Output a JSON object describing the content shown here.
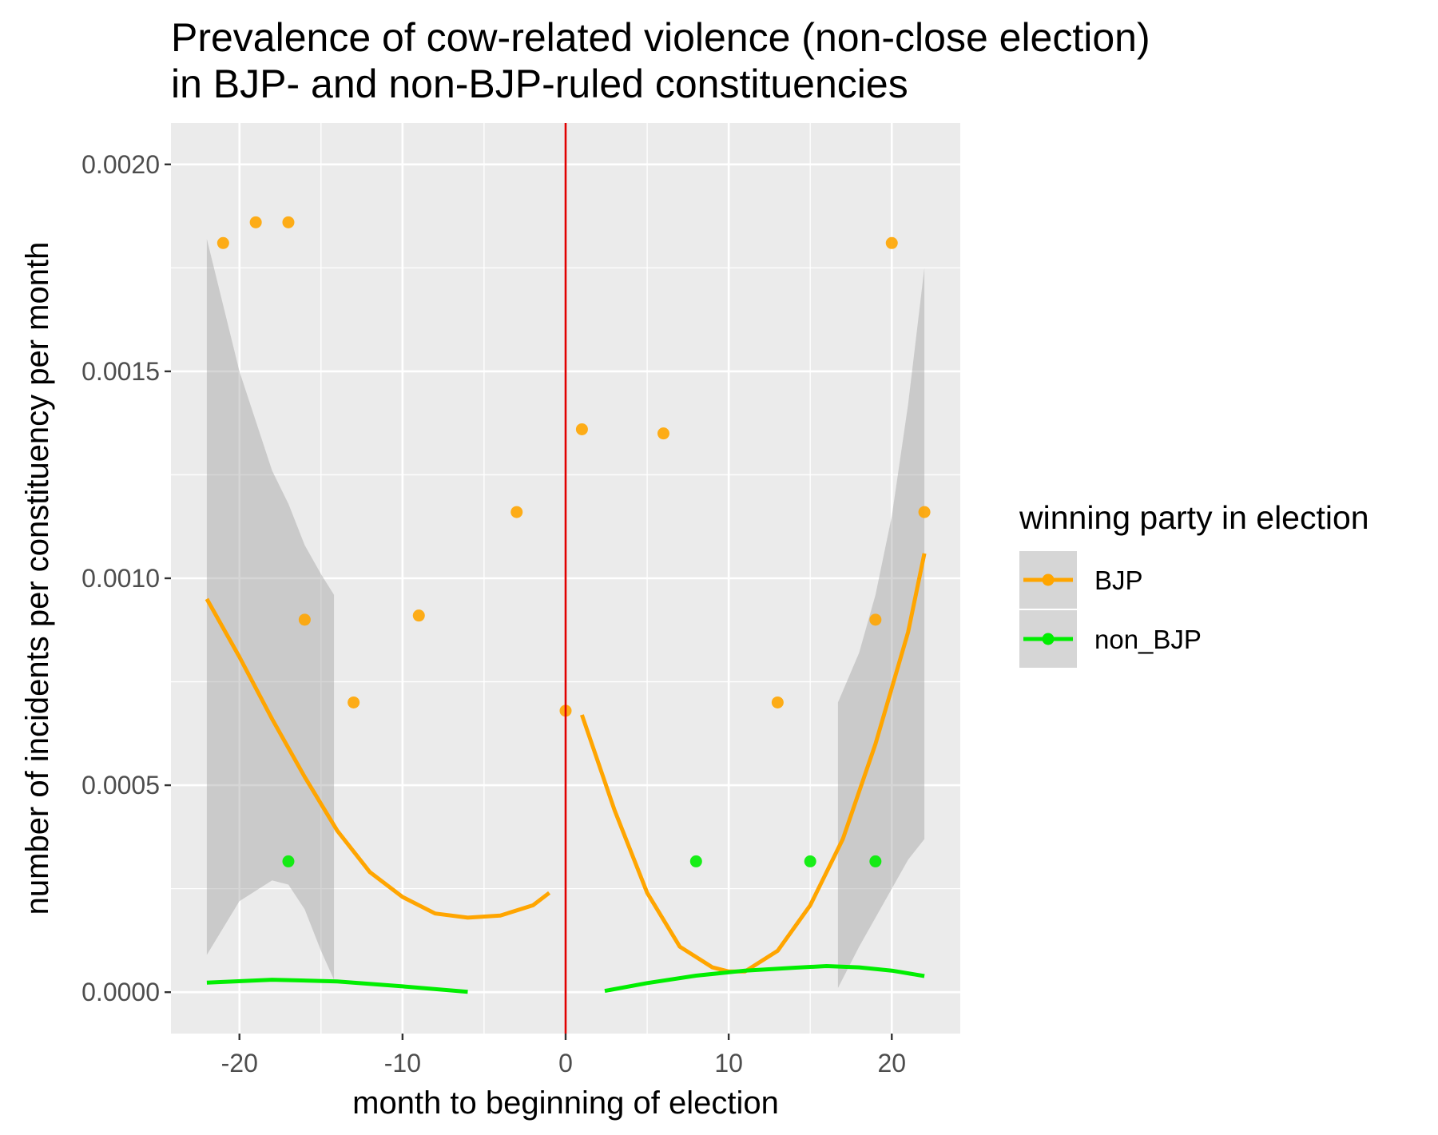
{
  "chart_data": {
    "type": "scatter",
    "title": [
      "Prevalence of cow-related violence (non-close election)",
      "in BJP- and non-BJP-ruled constituencies"
    ],
    "xlabel": "month to beginning of election",
    "ylabel": "number of incidents per constituency per month",
    "xlim": [
      -24.2,
      24.2
    ],
    "ylim": [
      -0.0001,
      0.0021
    ],
    "x_ticks": [
      -20,
      -10,
      0,
      10,
      20
    ],
    "x_tick_labels": [
      "-20",
      "-10",
      "0",
      "10",
      "20"
    ],
    "y_ticks": [
      0.0,
      0.0005,
      0.001,
      0.0015,
      0.002
    ],
    "y_tick_labels": [
      "0.0000",
      "0.0005",
      "0.0010",
      "0.0015",
      "0.0020"
    ],
    "grid": true,
    "vline": {
      "x": 0,
      "color": "#e00000"
    },
    "legend": {
      "title": "winning party in election",
      "position": "right",
      "entries": [
        {
          "label": "BJP",
          "color": "#ffa500"
        },
        {
          "label": "non_BJP",
          "color": "#00ee00"
        }
      ]
    },
    "series": [
      {
        "name": "BJP",
        "color": "#ffa500",
        "points": [
          {
            "x": -21,
            "y": 0.00181
          },
          {
            "x": -19,
            "y": 0.00186
          },
          {
            "x": -17,
            "y": 0.00186
          },
          {
            "x": -16,
            "y": 0.0009
          },
          {
            "x": -13,
            "y": 0.0007
          },
          {
            "x": -9,
            "y": 0.00091
          },
          {
            "x": -3,
            "y": 0.00116
          },
          {
            "x": 0,
            "y": 0.00068
          },
          {
            "x": 1,
            "y": 0.00136
          },
          {
            "x": 6,
            "y": 0.00135
          },
          {
            "x": 13,
            "y": 0.0007
          },
          {
            "x": 19,
            "y": 0.0009
          },
          {
            "x": 20,
            "y": 0.00181
          },
          {
            "x": 22,
            "y": 0.00116
          }
        ],
        "fits": [
          {
            "x": [
              -22,
              -20,
              -18,
              -16,
              -14,
              -12,
              -10,
              -8,
              -6,
              -4,
              -2,
              -1
            ],
            "y": [
              0.00095,
              0.00081,
              0.00066,
              0.00052,
              0.00039,
              0.00029,
              0.00023,
              0.00019,
              0.00018,
              0.000185,
              0.00021,
              0.00024
            ]
          },
          {
            "x": [
              1,
              3,
              5,
              7,
              9,
              10,
              11,
              13,
              15,
              17,
              19,
              21,
              22
            ],
            "y": [
              0.00067,
              0.00044,
              0.00024,
              0.00011,
              6e-05,
              5e-05,
              5e-05,
              0.0001,
              0.00021,
              0.00037,
              0.0006,
              0.00087,
              0.00106
            ]
          }
        ],
        "bands": [
          {
            "x": [
              -22,
              -20,
              -18,
              -17,
              -16,
              -15,
              -14.2
            ],
            "upper": [
              0.00182,
              0.0015,
              0.00126,
              0.00118,
              0.00108,
              0.00101,
              0.00096
            ],
            "lower": [
              9e-05,
              0.00022,
              0.00027,
              0.00026,
              0.0002,
              0.0001,
              3e-05
            ]
          },
          {
            "x": [
              16.7,
              18,
              19,
              20,
              21,
              22
            ],
            "upper": [
              0.0007,
              0.00082,
              0.00096,
              0.00115,
              0.00142,
              0.00175
            ],
            "lower": [
              1e-05,
              0.00011,
              0.00018,
              0.00025,
              0.00032,
              0.00037
            ]
          }
        ]
      },
      {
        "name": "non_BJP",
        "color": "#00ee00",
        "points": [
          {
            "x": -17,
            "y": 0.000316
          },
          {
            "x": 8,
            "y": 0.000316
          },
          {
            "x": 15,
            "y": 0.000316
          },
          {
            "x": 19,
            "y": 0.000316
          }
        ],
        "fits": [
          {
            "x": [
              -22,
              -18,
              -14,
              -10,
              -6
            ],
            "y": [
              2.3e-05,
              3e-05,
              2.6e-05,
              1.4e-05,
              1e-06
            ]
          },
          {
            "x": [
              2.4,
              5,
              8,
              11,
              14,
              16,
              18,
              20,
              22
            ],
            "y": [
              3e-06,
              2.2e-05,
              4e-05,
              5.2e-05,
              5.9e-05,
              6.3e-05,
              6e-05,
              5.2e-05,
              3.9e-05
            ]
          }
        ]
      }
    ]
  }
}
